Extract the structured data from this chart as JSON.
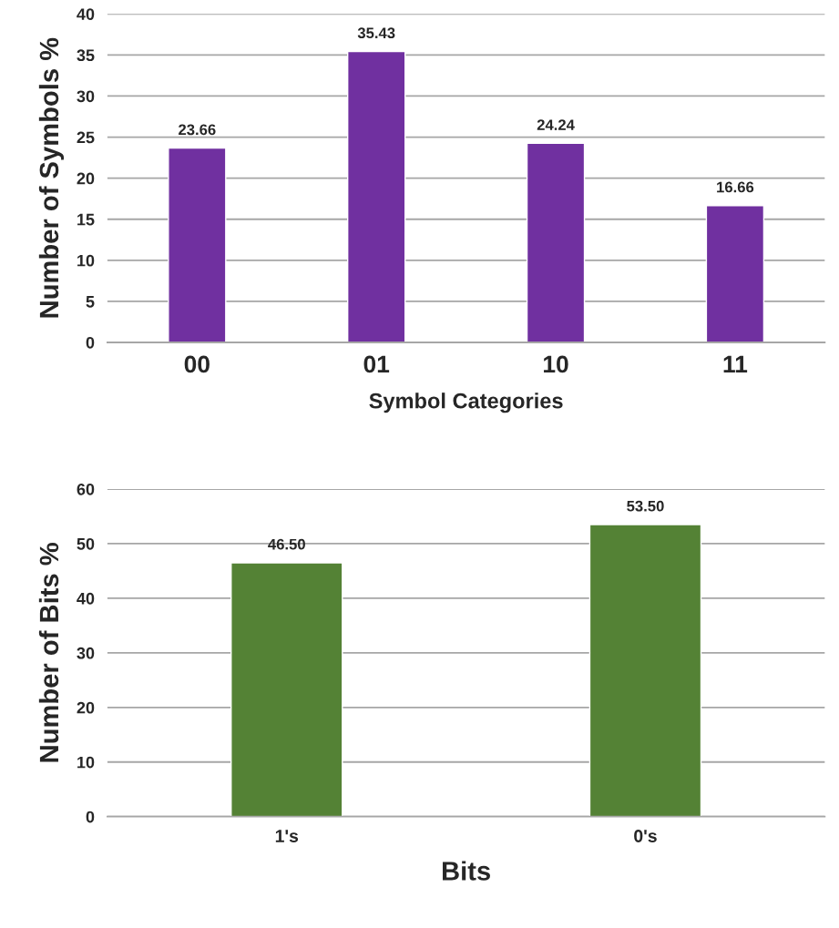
{
  "chart_data": [
    {
      "type": "bar",
      "xlabel": "Symbol Categories",
      "ylabel": "Number of Symbols %",
      "categories": [
        "00",
        "01",
        "10",
        "11"
      ],
      "series": [
        {
          "color": "#7030a0",
          "values": [
            23.66,
            35.43,
            24.24,
            16.66
          ]
        }
      ],
      "value_labels": [
        "23.66",
        "35.43",
        "24.24",
        "16.66"
      ],
      "ylim": [
        0,
        40
      ],
      "yticks": [
        0,
        5,
        10,
        15,
        20,
        25,
        30,
        35,
        40
      ],
      "grid": "y"
    },
    {
      "type": "bar",
      "xlabel": "Bits",
      "ylabel": "Number of Bits %",
      "categories": [
        "1's",
        "0's"
      ],
      "series": [
        {
          "color": "#548235",
          "values": [
            46.5,
            53.5
          ]
        }
      ],
      "value_labels": [
        "46.50",
        "53.50"
      ],
      "ylim": [
        0,
        60
      ],
      "yticks": [
        0,
        10,
        20,
        30,
        40,
        50,
        60
      ],
      "grid": "y"
    }
  ]
}
